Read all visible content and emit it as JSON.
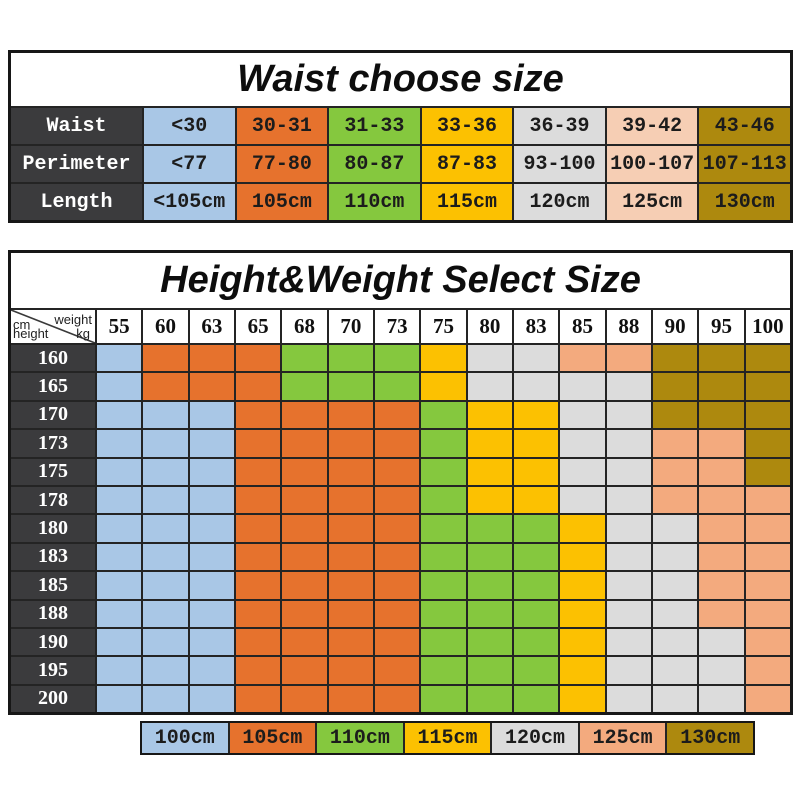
{
  "chart_data": [
    {
      "type": "table",
      "title": "Waist choose size",
      "row_labels": [
        "Waist",
        "Perimeter",
        "Length"
      ],
      "rows": [
        [
          "<30",
          "30-31",
          "31-33",
          "33-36",
          "36-39",
          "39-42",
          "43-46"
        ],
        [
          "<77",
          "77-80",
          "80-87",
          "87-83",
          "93-100",
          "100-107",
          "107-113"
        ],
        [
          "<105cm",
          "105cm",
          "110cm",
          "115cm",
          "120cm",
          "125cm",
          "130cm"
        ]
      ],
      "column_colors": [
        "#a9c7e6",
        "#e6722d",
        "#85c83e",
        "#fcc101",
        "#dcdcdc",
        "#f6ceb4",
        "#ad890e"
      ],
      "label_bg": "#3b3b3d"
    },
    {
      "type": "heatmap",
      "title": "Height&Weight Select Size",
      "corner": {
        "weight": "weight",
        "kg": "kg",
        "cm": "cm",
        "height": "height"
      },
      "x": [
        "55",
        "60",
        "63",
        "65",
        "68",
        "70",
        "73",
        "75",
        "80",
        "83",
        "85",
        "88",
        "90",
        "95",
        "100"
      ],
      "y": [
        "160",
        "165",
        "170",
        "173",
        "175",
        "178",
        "180",
        "183",
        "185",
        "188",
        "190",
        "195",
        "200"
      ],
      "values": [
        [
          "100",
          "105",
          "105",
          "105",
          "110",
          "110",
          "110",
          "115",
          "120",
          "120",
          "125",
          "125",
          "130",
          "130",
          "130"
        ],
        [
          "100",
          "105",
          "105",
          "105",
          "110",
          "110",
          "110",
          "115",
          "120",
          "120",
          "120",
          "120",
          "130",
          "130",
          "130"
        ],
        [
          "100",
          "100",
          "100",
          "105",
          "105",
          "105",
          "105",
          "110",
          "115",
          "115",
          "120",
          "120",
          "130",
          "130",
          "130"
        ],
        [
          "100",
          "100",
          "100",
          "105",
          "105",
          "105",
          "105",
          "110",
          "115",
          "115",
          "120",
          "120",
          "125",
          "125",
          "130"
        ],
        [
          "100",
          "100",
          "100",
          "105",
          "105",
          "105",
          "105",
          "110",
          "115",
          "115",
          "120",
          "120",
          "125",
          "125",
          "130"
        ],
        [
          "100",
          "100",
          "100",
          "105",
          "105",
          "105",
          "105",
          "110",
          "115",
          "115",
          "120",
          "120",
          "125",
          "125",
          "125"
        ],
        [
          "100",
          "100",
          "100",
          "105",
          "105",
          "105",
          "105",
          "110",
          "110",
          "110",
          "115",
          "120",
          "120",
          "125",
          "125"
        ],
        [
          "100",
          "100",
          "100",
          "105",
          "105",
          "105",
          "105",
          "110",
          "110",
          "110",
          "115",
          "120",
          "120",
          "125",
          "125"
        ],
        [
          "100",
          "100",
          "100",
          "105",
          "105",
          "105",
          "105",
          "110",
          "110",
          "110",
          "115",
          "120",
          "120",
          "125",
          "125"
        ],
        [
          "100",
          "100",
          "100",
          "105",
          "105",
          "105",
          "105",
          "110",
          "110",
          "110",
          "115",
          "120",
          "120",
          "125",
          "125"
        ],
        [
          "100",
          "100",
          "100",
          "105",
          "105",
          "105",
          "105",
          "110",
          "110",
          "110",
          "115",
          "120",
          "120",
          "120",
          "125"
        ],
        [
          "100",
          "100",
          "100",
          "105",
          "105",
          "105",
          "105",
          "110",
          "110",
          "110",
          "115",
          "120",
          "120",
          "120",
          "125"
        ],
        [
          "100",
          "100",
          "100",
          "105",
          "105",
          "105",
          "105",
          "110",
          "110",
          "110",
          "115",
          "120",
          "120",
          "120",
          "125"
        ]
      ],
      "size_colors": {
        "100": "#a9c7e6",
        "105": "#e6722d",
        "110": "#85c83e",
        "115": "#fcc101",
        "120": "#dcdcdc",
        "125": "#f3aa7e",
        "130": "#ad890e"
      },
      "legend": [
        {
          "label": "100cm",
          "size": "100"
        },
        {
          "label": "105cm",
          "size": "105"
        },
        {
          "label": "110cm",
          "size": "110"
        },
        {
          "label": "115cm",
          "size": "115"
        },
        {
          "label": "120cm",
          "size": "120"
        },
        {
          "label": "125cm",
          "size": "125"
        },
        {
          "label": "130cm",
          "size": "130"
        }
      ],
      "legend_position": "bottom"
    }
  ]
}
